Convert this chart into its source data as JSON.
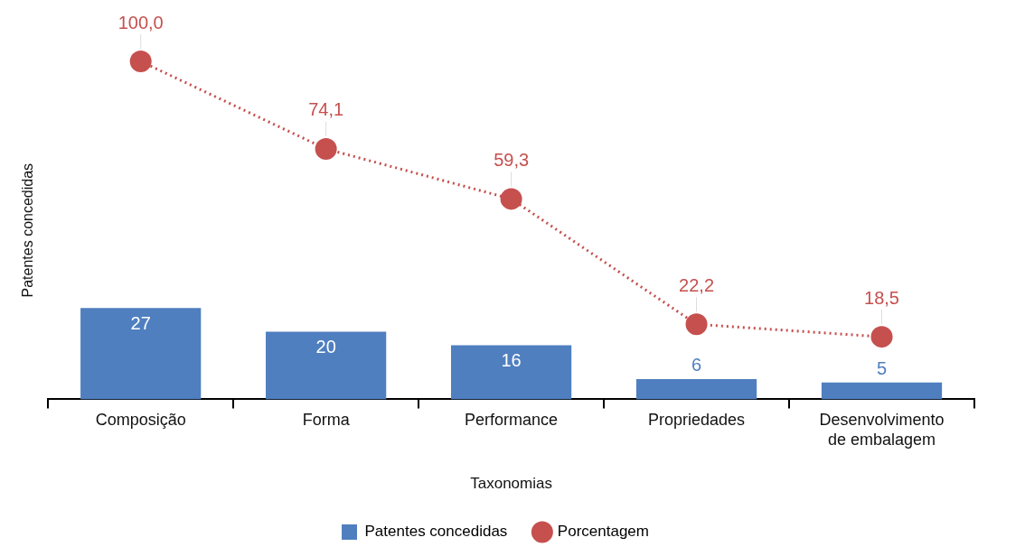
{
  "chart_data": {
    "type": "bar",
    "xlabel": "Taxonomias",
    "ylabel": "Patentes concedidas",
    "categories": [
      "Composição",
      "Forma",
      "Performance",
      "Propriedades",
      "Desenvolvimento de embalagem"
    ],
    "series": [
      {
        "name": "Patentes concedidas",
        "color": "#4f7fbf",
        "values": [
          27,
          20,
          16,
          6,
          5
        ],
        "value_labels": [
          "27",
          "20",
          "16",
          "6",
          "5"
        ]
      },
      {
        "name": "Porcentagem",
        "type": "line",
        "color": "#c5504e",
        "values": [
          100,
          74.1,
          59.3,
          22.2,
          18.5
        ],
        "value_labels": [
          "100,0",
          "74,1",
          "59,3",
          "22,2",
          "18,5"
        ],
        "marker": "circle",
        "line_style": "dotted"
      }
    ],
    "legend": "bottom",
    "grid": false
  }
}
